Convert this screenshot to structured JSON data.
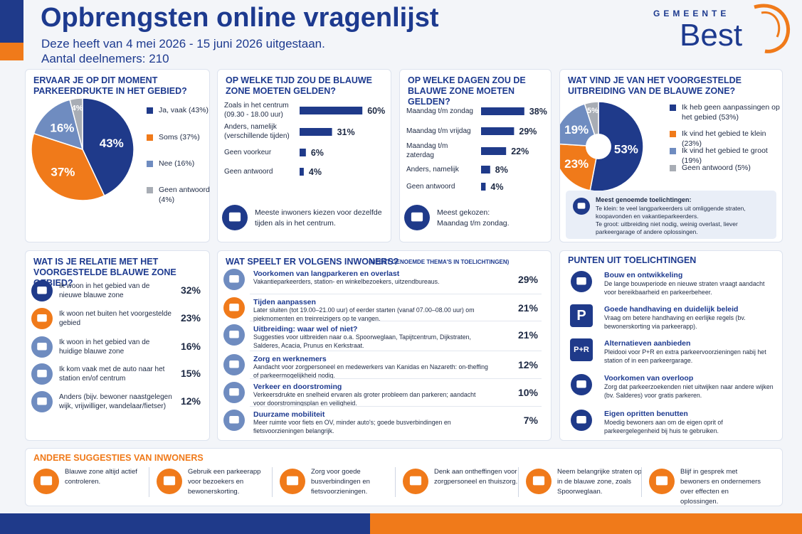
{
  "header": {
    "title": "Opbrengsten online vragenlijst",
    "period": "Deze heeft van 4 mei 2026 - 15 juni 2026 uitgestaan.",
    "participants": "Aantal deelnemers: 210",
    "logo_top": "GEMEENTE",
    "logo_name": "Best"
  },
  "chart_data": [
    {
      "type": "pie",
      "title": "ERVAAR JE OP DIT MOMENT PARKEERDRUKTE IN HET GEBIED?",
      "categories": [
        "Ja, vaak (43%)",
        "Soms (37%)",
        "Nee (16%)",
        "Geen antwoord (4%)"
      ],
      "values": [
        43,
        37,
        16,
        4
      ],
      "value_labels": [
        "43%",
        "37%",
        "16%",
        "4%"
      ],
      "colors": [
        "#1f3a8a",
        "#f07a1a",
        "#6f8cc0",
        "#a8adb5"
      ]
    },
    {
      "type": "bar",
      "title": "OP WELKE TIJD ZOU DE BLAUWE ZONE MOETEN GELDEN?",
      "categories": [
        "Zoals in het centrum (09.30 - 18.00 uur)",
        "Anders, namelijk (verschillende tijden)",
        "Geen voorkeur",
        "Geen antwoord"
      ],
      "values": [
        60,
        31,
        6,
        4
      ],
      "value_labels": [
        "60%",
        "31%",
        "6%",
        "4%"
      ],
      "color": "#1f3a8a",
      "note": [
        "Meeste inwoners kiezen voor dezelfde tijden als in het centrum."
      ]
    },
    {
      "type": "bar",
      "title": "OP WELKE DAGEN ZOU DE BLAUWE ZONE MOETEN GELDEN?",
      "categories": [
        "Maandag t/m zondag",
        "Maandag t/m vrijdag",
        "Maandag t/m zaterdag",
        "Anders, namelijk",
        "Geen antwoord"
      ],
      "values": [
        38,
        29,
        22,
        8,
        4
      ],
      "value_labels": [
        "38%",
        "29%",
        "22%",
        "8%",
        "4%"
      ],
      "color": "#1f3a8a",
      "note": [
        "Meest gekozen:",
        "Maandag t/m zondag."
      ]
    },
    {
      "type": "donut",
      "title": "WAT VIND JE VAN HET VOORGESTELDE UITBREIDING VAN DE BLAUWE ZONE?",
      "categories": [
        "Ik heb geen aanpassingen op het gebied (53%)",
        "Ik vind het gebied te klein (23%)",
        "Ik vind het gebied te groot (19%)",
        "Geen antwoord (5%)"
      ],
      "values": [
        53,
        23,
        19,
        5
      ],
      "value_labels": [
        "53%",
        "23%",
        "19%",
        "5%"
      ],
      "colors": [
        "#1f3a8a",
        "#f07a1a",
        "#6f8cc0",
        "#a8adb5"
      ],
      "note_title": "Meest genoemde toelichtingen:",
      "notes": [
        "Te klein: te veel langparkeerders uit omliggende straten, koopavonden en vakantieparkeerders.",
        "Te groot: uitbreiding niet nodig, weinig overlast, liever parkeergarage of andere oplossingen."
      ]
    }
  ],
  "relation": {
    "title": "WAT IS JE RELATIE MET HET VOORGESTELDE BLAUWE ZONE GEBIED?",
    "items": [
      {
        "label": "Ik woon in het gebied van de nieuwe blauwe zone",
        "value": "32%"
      },
      {
        "label": "Ik woon net buiten het voorgestelde gebied",
        "value": "23%"
      },
      {
        "label": "Ik woon in het gebied van de huidige blauwe zone",
        "value": "16%"
      },
      {
        "label": "Ik kom vaak met de auto naar het station en/of centrum",
        "value": "15%"
      },
      {
        "label": "Anders (bijv. bewoner naastgelegen wijk, vrijwilliger, wandelaar/fietser)",
        "value": "12%"
      }
    ]
  },
  "themes": {
    "title": "WAT SPEELT ER VOLGENS INWONERS?",
    "subtitle": "(MEEST GENOEMDE THEMA'S IN TOELICHTINGEN)",
    "items": [
      {
        "title": "Voorkomen van langparkeren en overlast",
        "text": "Vakantieparkeerders, station- en winkelbezoekers, uitzendbureaus.",
        "value": "29%"
      },
      {
        "title": "Tijden aanpassen",
        "text": "Later sluiten (tot 19.00–21.00 uur) of eerder starten (vanaf 07.00–08.00 uur) om piekmomenten en treinreizigers op te vangen.",
        "value": "21%"
      },
      {
        "title": "Uitbreiding: waar wel of niet?",
        "text": "Suggesties voor uitbreiden naar o.a. Spoorweglaan, Tapijtcentrum, Dijkstraten, Salderes, Acacia, Prunus en Kerkstraat.",
        "value": "21%"
      },
      {
        "title": "Zorg en werknemers",
        "text": "Aandacht voor zorgpersoneel en medewerkers van Kanidas en Nazareth: on-theffing of parkeermogelijkheid nodig.",
        "value": "12%"
      },
      {
        "title": "Verkeer en doorstroming",
        "text": "Verkeersdrukte en snelheid ervaren als groter probleem dan parkeren; aandacht voor doorstromingsplan en veiligheid.",
        "value": "10%"
      },
      {
        "title": "Duurzame mobiliteit",
        "text": "Meer ruimte voor fiets en OV, minder auto's; goede busverbindingen en fietsvoorzieningen belangrijk.",
        "value": "7%"
      }
    ]
  },
  "points": {
    "title": "PUNTEN UIT TOELICHTINGEN",
    "items": [
      {
        "title": "Bouw en ontwikkeling",
        "text": "De lange bouwperiode en nieuwe straten vraagt aandacht voor bereikbaarheid en parkeerbeheer."
      },
      {
        "title": "Goede handhaving en duidelijk beleid",
        "text": "Vraag om betere handhaving en eerlijke regels (bv. bewonerskorting via parkeerapp).",
        "icon_text": "P"
      },
      {
        "title": "Alternatieven aanbieden",
        "text": "Pleidooi voor P+R en extra parkeervoorzieningen nabij het station of in een parkeergarage.",
        "icon_text": "P+R"
      },
      {
        "title": "Voorkomen van overloop",
        "text": "Zorg dat parkeerzoekenden niet uitwijken naar andere wijken (bv. Salderes) voor gratis parkeren."
      },
      {
        "title": "Eigen opritten benutten",
        "text": "Moedig bewoners aan om de eigen oprit of parkeergelegenheid bij huis te gebruiken."
      }
    ]
  },
  "suggestions": {
    "title": "ANDERE SUGGESTIES VAN INWONERS",
    "items": [
      "Blauwe zone altijd actief controleren.",
      "Gebruik een parkeerapp voor bezoekers en bewonerskorting.",
      "Zorg voor goede busverbindingen en fietsvoorzieningen.",
      "Denk aan ontheffingen voor zorgpersoneel en thuiszorg.",
      "Neem belangrijke straten op in de blauwe zone, zoals Spoorweglaan.",
      "Blijf in gesprek met bewoners en ondernemers over effecten en oplossingen."
    ]
  }
}
